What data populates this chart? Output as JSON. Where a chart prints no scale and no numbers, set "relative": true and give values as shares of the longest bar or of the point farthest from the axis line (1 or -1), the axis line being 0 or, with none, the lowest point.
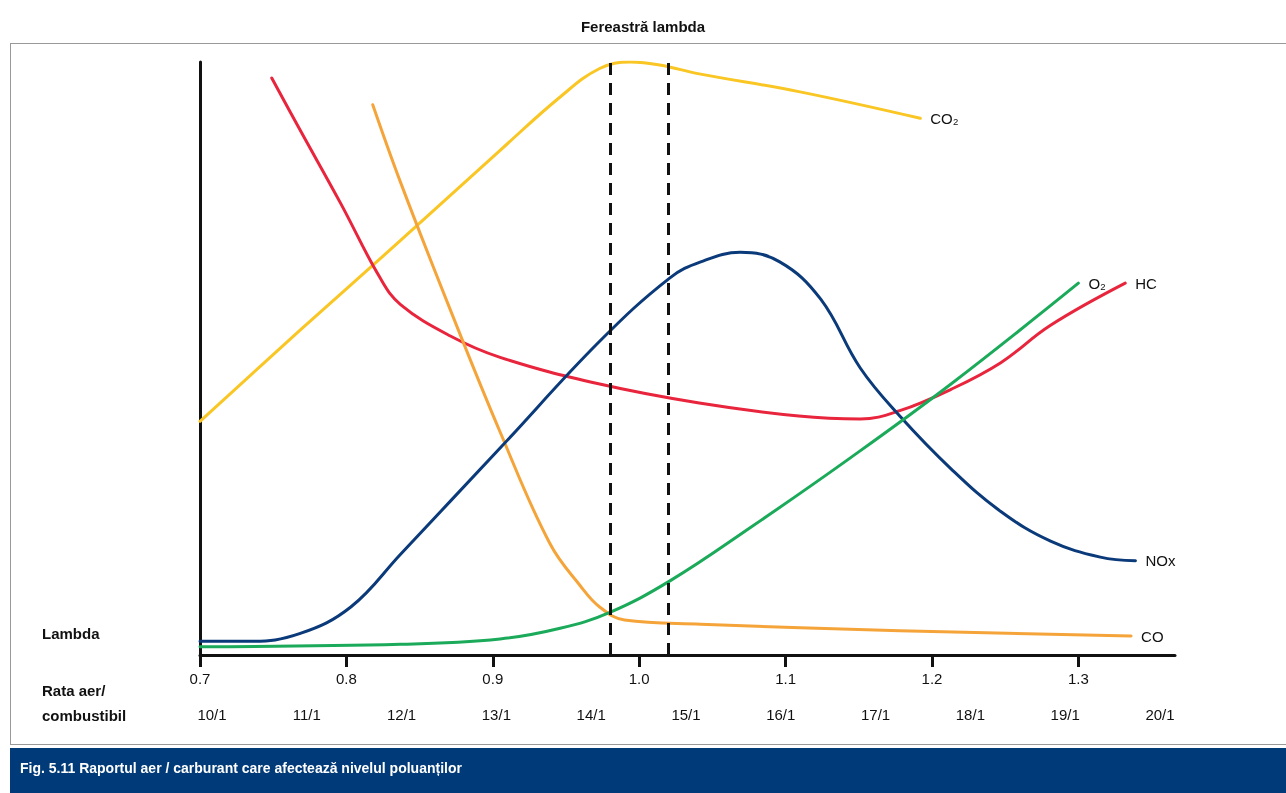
{
  "chart_data": {
    "type": "line",
    "title": "Fereastră lambda",
    "relative": true,
    "marker": "none",
    "line_style": "solid",
    "xlim": [
      0.7,
      1.366
    ],
    "xticks": [
      0.7,
      0.8,
      0.9,
      {
        "value": 1,
        "label": "1.0"
      },
      1.1,
      1.2,
      1.3
    ],
    "ref_lines": [
      {
        "axis": "x",
        "value": 0.98,
        "color": "#111111",
        "line_style": "dashed"
      },
      {
        "axis": "x",
        "value": 1.022,
        "color": "#111111",
        "line_style": "dashed"
      }
    ],
    "annotations": [
      "Lambda",
      "Rata aer/ combustibil",
      "10/1",
      "11/1",
      "12/1",
      "13/1",
      "14/1",
      "15/1",
      "16/1",
      "17/1",
      "18/1",
      "19/1",
      "20/1",
      "Fig. 5.11 Raportul aer / carburant care afectează nivelul poluanților"
    ],
    "series": [
      {
        "name": "CO₂",
        "color": "#f9c623",
        "x": [
          0.7,
          0.768,
          0.837,
          0.905,
          0.946,
          0.973,
          0.994,
          1.014,
          1.041,
          1.109,
          1.192
        ],
        "values": [
          0.394,
          0.547,
          0.699,
          0.851,
          0.941,
          0.989,
          1,
          0.995,
          0.98,
          0.95,
          0.905
        ]
      },
      {
        "name": "HC",
        "color": "#e8253c",
        "x": [
          0.749,
          0.768,
          0.796,
          0.823,
          0.837,
          0.871,
          0.905,
          0.973,
          1.041,
          1.109,
          1.151,
          1.178,
          1.213,
          1.247,
          1.281,
          1.332
        ],
        "values": [
          0.973,
          0.887,
          0.762,
          0.636,
          0.591,
          0.538,
          0.502,
          0.457,
          0.425,
          0.403,
          0.398,
          0.412,
          0.448,
          0.493,
          0.556,
          0.627
        ]
      },
      {
        "name": "CO",
        "color": "#f5a43a",
        "x": [
          0.818,
          0.837,
          0.871,
          0.905,
          0.939,
          0.96,
          0.973,
          0.99,
          1.042,
          1.178,
          1.336
        ],
        "values": [
          0.928,
          0.797,
          0.582,
          0.376,
          0.188,
          0.116,
          0.081,
          0.059,
          0.052,
          0.041,
          0.032
        ]
      },
      {
        "name": "NOx",
        "color": "#0a3a7a",
        "x": [
          0.7,
          0.734,
          0.768,
          0.803,
          0.837,
          0.905,
          0.973,
          1.021,
          1.042,
          1.069,
          1.096,
          1.124,
          1.151,
          1.178,
          1.213,
          1.247,
          1.281,
          1.315,
          1.339
        ],
        "values": [
          0.023,
          0.023,
          0.036,
          0.081,
          0.17,
          0.349,
          0.529,
          0.636,
          0.663,
          0.679,
          0.663,
          0.6,
          0.484,
          0.403,
          0.314,
          0.242,
          0.192,
          0.165,
          0.159
        ]
      },
      {
        "name": "O₂",
        "color": "#1aaa5a",
        "x": [
          0.7,
          0.837,
          0.905,
          0.946,
          0.98,
          1.021,
          1.076,
          1.144,
          1.213,
          1.3
        ],
        "values": [
          0.014,
          0.018,
          0.027,
          0.045,
          0.072,
          0.125,
          0.215,
          0.332,
          0.457,
          0.627
        ]
      }
    ]
  }
}
